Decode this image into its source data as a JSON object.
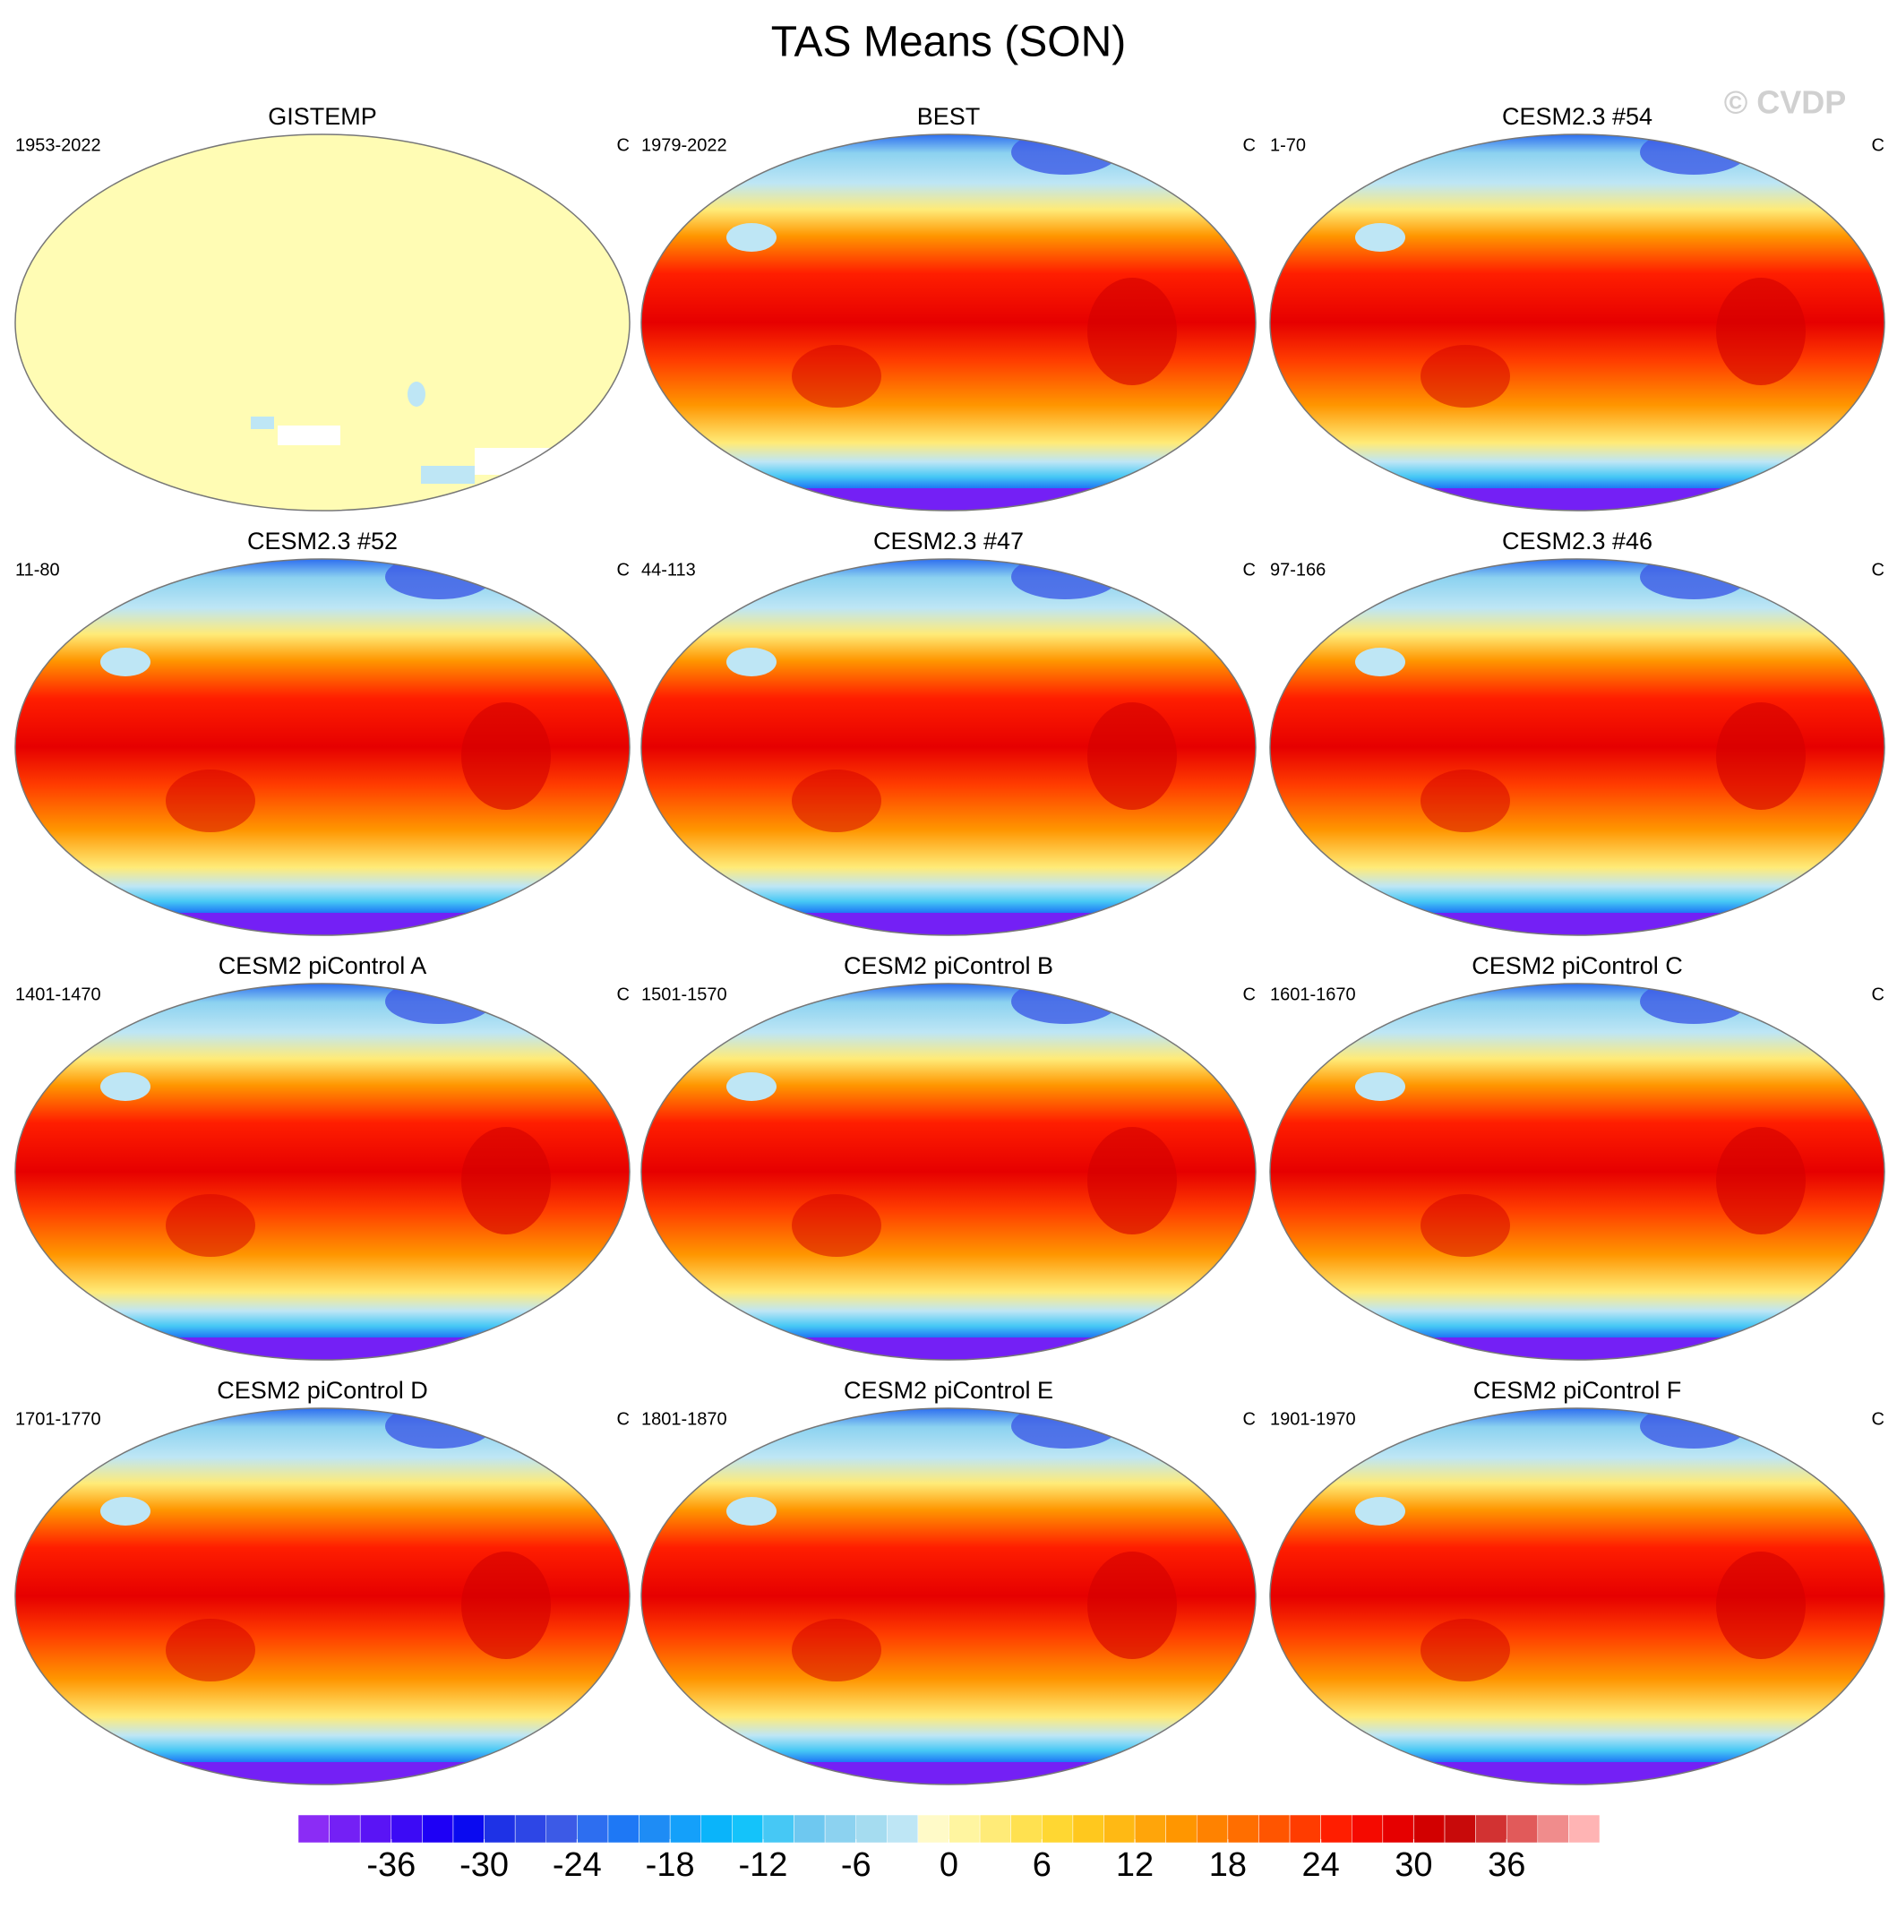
{
  "title": "TAS Means (SON)",
  "watermark": "© CVDP",
  "panels": [
    {
      "title": "GISTEMP",
      "period": "1953-2022",
      "units": "C",
      "style": "sparse"
    },
    {
      "title": "BEST",
      "period": "1979-2022",
      "units": "C",
      "style": "full"
    },
    {
      "title": "CESM2.3 #54",
      "period": "1-70",
      "units": "C",
      "style": "full"
    },
    {
      "title": "CESM2.3 #52",
      "period": "11-80",
      "units": "C",
      "style": "full"
    },
    {
      "title": "CESM2.3 #47",
      "period": "44-113",
      "units": "C",
      "style": "full"
    },
    {
      "title": "CESM2.3 #46",
      "period": "97-166",
      "units": "C",
      "style": "full"
    },
    {
      "title": "CESM2 piControl A",
      "period": "1401-1470",
      "units": "C",
      "style": "full"
    },
    {
      "title": "CESM2 piControl B",
      "period": "1501-1570",
      "units": "C",
      "style": "full"
    },
    {
      "title": "CESM2 piControl C",
      "period": "1601-1670",
      "units": "C",
      "style": "full"
    },
    {
      "title": "CESM2 piControl D",
      "period": "1701-1770",
      "units": "C",
      "style": "full"
    },
    {
      "title": "CESM2 piControl E",
      "period": "1801-1870",
      "units": "C",
      "style": "full"
    },
    {
      "title": "CESM2 piControl F",
      "period": "1901-1970",
      "units": "C",
      "style": "full"
    }
  ],
  "colorbar": {
    "lim": [
      -42,
      42
    ],
    "ticks": [
      -36,
      -30,
      -24,
      -18,
      -12,
      -6,
      0,
      6,
      12,
      18,
      24,
      30,
      36
    ],
    "colors": [
      "#8b2cf5",
      "#7420f5",
      "#5a14f5",
      "#3c0af5",
      "#1e00f5",
      "#0a0af0",
      "#1e32e6",
      "#2d46e6",
      "#3c5ae6",
      "#2d6ef0",
      "#1e78f5",
      "#1e8cf5",
      "#14a0fa",
      "#0ab4fa",
      "#14c3fa",
      "#46c8f5",
      "#6ec8f0",
      "#8cd2f0",
      "#a5dcf0",
      "#bee6f5",
      "#fffac8",
      "#fff5a0",
      "#ffeb78",
      "#ffe150",
      "#ffd732",
      "#ffc81e",
      "#ffb914",
      "#ffa50a",
      "#ff9600",
      "#ff8200",
      "#ff6e00",
      "#ff5500",
      "#ff3c00",
      "#ff1e00",
      "#f50a00",
      "#e60000",
      "#d20000",
      "#c80a0a",
      "#d23232",
      "#e15a5a",
      "#f08c8c",
      "#ffb4b4"
    ]
  }
}
